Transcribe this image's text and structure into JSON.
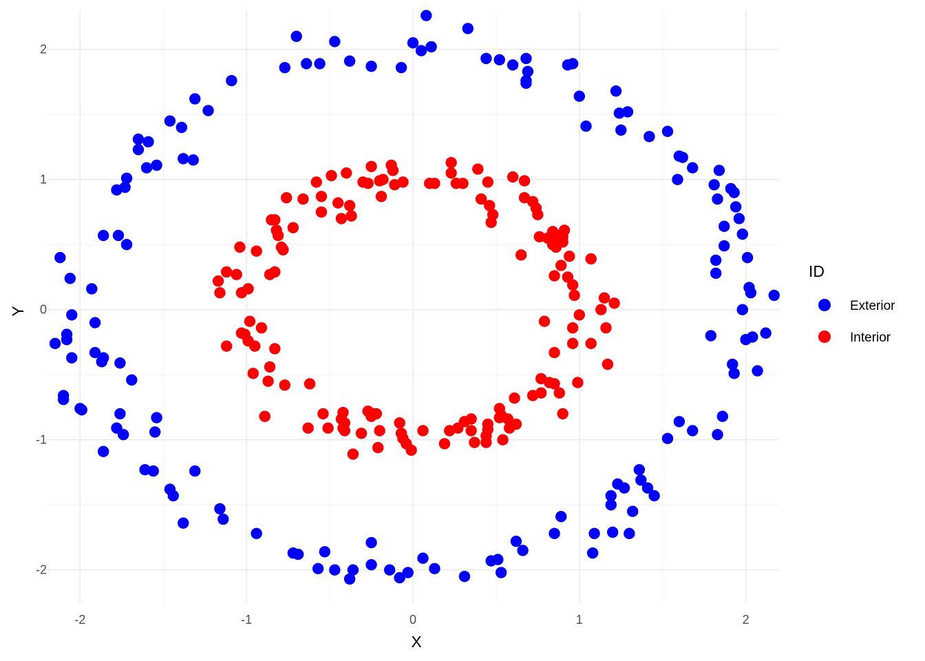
{
  "chart_data": {
    "type": "scatter",
    "title": "",
    "xlabel": "X",
    "ylabel": "Y",
    "xlim": [
      -2.2,
      2.2
    ],
    "ylim": [
      -2.25,
      2.3
    ],
    "x_ticks": [
      -2,
      -1,
      0,
      1,
      2
    ],
    "y_ticks": [
      -2,
      -1,
      0,
      1,
      2
    ],
    "x_tick_labels": [
      "-2",
      "-1",
      "0",
      "1",
      "2"
    ],
    "y_tick_labels": [
      "-2",
      "-1",
      "0",
      "1",
      "2"
    ],
    "grid": true,
    "legend": {
      "title": "ID",
      "position": "right"
    },
    "series": [
      {
        "name": "Exterior",
        "color": "#0000ff",
        "points": [
          [
            0.08,
            2.26
          ],
          [
            0.33,
            2.16
          ],
          [
            -0.7,
            2.1
          ],
          [
            -0.47,
            2.06
          ],
          [
            0.0,
            2.05
          ],
          [
            0.11,
            2.02
          ],
          [
            0.05,
            1.99
          ],
          [
            0.44,
            1.93
          ],
          [
            0.52,
            1.92
          ],
          [
            0.68,
            1.93
          ],
          [
            -0.38,
            1.91
          ],
          [
            -0.56,
            1.89
          ],
          [
            -0.64,
            1.89
          ],
          [
            -0.25,
            1.87
          ],
          [
            -0.77,
            1.86
          ],
          [
            -0.07,
            1.86
          ],
          [
            0.6,
            1.88
          ],
          [
            0.69,
            1.83
          ],
          [
            0.93,
            1.88
          ],
          [
            0.96,
            1.89
          ],
          [
            0.68,
            1.76
          ],
          [
            0.68,
            1.74
          ],
          [
            -1.09,
            1.76
          ],
          [
            -1.23,
            1.53
          ],
          [
            -1.31,
            1.62
          ],
          [
            1.0,
            1.64
          ],
          [
            1.22,
            1.68
          ],
          [
            1.24,
            1.51
          ],
          [
            1.29,
            1.52
          ],
          [
            1.04,
            1.41
          ],
          [
            1.25,
            1.38
          ],
          [
            -1.46,
            1.45
          ],
          [
            -1.39,
            1.4
          ],
          [
            1.42,
            1.33
          ],
          [
            1.53,
            1.37
          ],
          [
            -1.65,
            1.31
          ],
          [
            -1.59,
            1.29
          ],
          [
            -1.65,
            1.23
          ],
          [
            -1.38,
            1.16
          ],
          [
            -1.32,
            1.15
          ],
          [
            -1.54,
            1.11
          ],
          [
            -1.6,
            1.09
          ],
          [
            1.6,
            1.18
          ],
          [
            1.62,
            1.17
          ],
          [
            1.68,
            1.09
          ],
          [
            1.59,
            1.0
          ],
          [
            1.84,
            1.07
          ],
          [
            -1.72,
            1.01
          ],
          [
            -1.73,
            0.94
          ],
          [
            -1.78,
            0.92
          ],
          [
            1.81,
            0.96
          ],
          [
            1.91,
            0.93
          ],
          [
            1.93,
            0.9
          ],
          [
            1.83,
            0.85
          ],
          [
            1.94,
            0.79
          ],
          [
            1.96,
            0.7
          ],
          [
            1.87,
            0.64
          ],
          [
            1.98,
            0.58
          ],
          [
            -1.86,
            0.57
          ],
          [
            -1.77,
            0.57
          ],
          [
            -1.72,
            0.5
          ],
          [
            1.87,
            0.49
          ],
          [
            -2.12,
            0.4
          ],
          [
            2.01,
            0.4
          ],
          [
            1.82,
            0.38
          ],
          [
            1.82,
            0.28
          ],
          [
            -2.06,
            0.24
          ],
          [
            -1.93,
            0.16
          ],
          [
            2.02,
            0.17
          ],
          [
            2.03,
            0.13
          ],
          [
            2.17,
            0.11
          ],
          [
            1.98,
            0.0
          ],
          [
            -2.05,
            -0.04
          ],
          [
            -1.91,
            -0.1
          ],
          [
            -2.08,
            -0.19
          ],
          [
            -2.08,
            -0.23
          ],
          [
            -2.15,
            -0.26
          ],
          [
            1.79,
            -0.2
          ],
          [
            2.12,
            -0.18
          ],
          [
            2.04,
            -0.21
          ],
          [
            2.0,
            -0.23
          ],
          [
            -2.05,
            -0.37
          ],
          [
            -1.91,
            -0.33
          ],
          [
            -1.86,
            -0.37
          ],
          [
            -1.87,
            -0.4
          ],
          [
            -1.76,
            -0.41
          ],
          [
            1.92,
            -0.42
          ],
          [
            1.93,
            -0.49
          ],
          [
            2.07,
            -0.47
          ],
          [
            -1.69,
            -0.54
          ],
          [
            -2.1,
            -0.66
          ],
          [
            -2.1,
            -0.69
          ],
          [
            -2.0,
            -0.76
          ],
          [
            -1.99,
            -0.77
          ],
          [
            -1.76,
            -0.8
          ],
          [
            -1.54,
            -0.83
          ],
          [
            1.86,
            -0.82
          ],
          [
            1.83,
            -0.96
          ],
          [
            1.6,
            -0.86
          ],
          [
            1.68,
            -0.93
          ],
          [
            1.53,
            -0.99
          ],
          [
            -1.78,
            -0.91
          ],
          [
            -1.74,
            -0.96
          ],
          [
            -1.55,
            -0.94
          ],
          [
            -1.86,
            -1.09
          ],
          [
            -1.61,
            -1.23
          ],
          [
            -1.56,
            -1.24
          ],
          [
            -1.31,
            -1.24
          ],
          [
            1.36,
            -1.23
          ],
          [
            1.37,
            -1.31
          ],
          [
            1.41,
            -1.37
          ],
          [
            1.45,
            -1.43
          ],
          [
            1.23,
            -1.34
          ],
          [
            1.27,
            -1.37
          ],
          [
            1.19,
            -1.43
          ],
          [
            1.19,
            -1.5
          ],
          [
            1.32,
            -1.55
          ],
          [
            -1.46,
            -1.38
          ],
          [
            -1.44,
            -1.43
          ],
          [
            -1.16,
            -1.53
          ],
          [
            -1.14,
            -1.61
          ],
          [
            -1.38,
            -1.64
          ],
          [
            0.89,
            -1.59
          ],
          [
            1.09,
            -1.72
          ],
          [
            1.2,
            -1.71
          ],
          [
            1.3,
            -1.72
          ],
          [
            0.85,
            -1.72
          ],
          [
            1.08,
            -1.87
          ],
          [
            -0.94,
            -1.72
          ],
          [
            -0.72,
            -1.87
          ],
          [
            -0.69,
            -1.88
          ],
          [
            -0.53,
            -1.86
          ],
          [
            -0.25,
            -1.79
          ],
          [
            0.62,
            -1.78
          ],
          [
            0.66,
            -1.85
          ],
          [
            -0.57,
            -1.99
          ],
          [
            -0.47,
            -2.0
          ],
          [
            -0.36,
            -2.0
          ],
          [
            -0.25,
            -1.96
          ],
          [
            -0.14,
            -2.0
          ],
          [
            -0.08,
            -2.06
          ],
          [
            -0.03,
            -2.02
          ],
          [
            0.06,
            -1.91
          ],
          [
            0.13,
            -1.99
          ],
          [
            0.31,
            -2.05
          ],
          [
            0.47,
            -1.93
          ],
          [
            0.51,
            -1.92
          ],
          [
            0.53,
            -2.02
          ],
          [
            -0.38,
            -2.07
          ]
        ]
      },
      {
        "name": "Interior",
        "color": "#ff0000",
        "points": [
          [
            0.23,
            1.13
          ],
          [
            -0.25,
            1.1
          ],
          [
            -0.13,
            1.11
          ],
          [
            -0.12,
            1.07
          ],
          [
            0.23,
            1.05
          ],
          [
            0.39,
            1.08
          ],
          [
            0.6,
            1.02
          ],
          [
            0.67,
            0.99
          ],
          [
            -0.4,
            1.05
          ],
          [
            -0.49,
            1.03
          ],
          [
            -0.3,
            0.98
          ],
          [
            -0.27,
            0.97
          ],
          [
            -0.2,
            0.99
          ],
          [
            -0.18,
            1.0
          ],
          [
            -0.11,
            0.96
          ],
          [
            -0.06,
            0.98
          ],
          [
            0.1,
            0.97
          ],
          [
            0.13,
            0.97
          ],
          [
            0.26,
            0.97
          ],
          [
            0.3,
            0.97
          ],
          [
            0.45,
            0.98
          ],
          [
            -0.58,
            0.98
          ],
          [
            -0.19,
            0.87
          ],
          [
            -0.55,
            0.87
          ],
          [
            -0.45,
            0.82
          ],
          [
            -0.38,
            0.8
          ],
          [
            -0.37,
            0.72
          ],
          [
            -0.43,
            0.7
          ],
          [
            -0.55,
            0.75
          ],
          [
            -0.66,
            0.85
          ],
          [
            -0.76,
            0.86
          ],
          [
            0.41,
            0.85
          ],
          [
            0.46,
            0.8
          ],
          [
            0.48,
            0.73
          ],
          [
            0.47,
            0.67
          ],
          [
            0.67,
            0.86
          ],
          [
            0.72,
            0.83
          ],
          [
            0.74,
            0.78
          ],
          [
            0.75,
            0.73
          ],
          [
            -0.85,
            0.69
          ],
          [
            -0.83,
            0.69
          ],
          [
            -0.72,
            0.63
          ],
          [
            -0.82,
            0.61
          ],
          [
            -0.81,
            0.57
          ],
          [
            -0.79,
            0.48
          ],
          [
            -0.78,
            0.46
          ],
          [
            0.76,
            0.56
          ],
          [
            0.81,
            0.55
          ],
          [
            0.84,
            0.6
          ],
          [
            0.87,
            0.57
          ],
          [
            0.91,
            0.61
          ],
          [
            0.9,
            0.56
          ],
          [
            0.84,
            0.5
          ],
          [
            0.86,
            0.48
          ],
          [
            0.9,
            0.52
          ],
          [
            0.65,
            0.42
          ],
          [
            0.94,
            0.41
          ],
          [
            1.07,
            0.39
          ],
          [
            -1.04,
            0.48
          ],
          [
            -0.94,
            0.45
          ],
          [
            -0.86,
            0.27
          ],
          [
            -0.83,
            0.29
          ],
          [
            -1.12,
            0.29
          ],
          [
            -1.06,
            0.27
          ],
          [
            -1.17,
            0.22
          ],
          [
            -1.16,
            0.13
          ],
          [
            -1.03,
            0.13
          ],
          [
            -0.99,
            0.16
          ],
          [
            0.89,
            0.34
          ],
          [
            0.85,
            0.26
          ],
          [
            0.93,
            0.25
          ],
          [
            0.96,
            0.19
          ],
          [
            0.97,
            0.11
          ],
          [
            1.15,
            0.09
          ],
          [
            1.21,
            0.05
          ],
          [
            1.13,
            0.0
          ],
          [
            1.0,
            -0.04
          ],
          [
            0.79,
            -0.09
          ],
          [
            0.96,
            -0.14
          ],
          [
            1.16,
            -0.14
          ],
          [
            -0.98,
            -0.09
          ],
          [
            -0.91,
            -0.14
          ],
          [
            -1.01,
            -0.19
          ],
          [
            -1.03,
            -0.18
          ],
          [
            -0.99,
            -0.24
          ],
          [
            -1.12,
            -0.28
          ],
          [
            -0.95,
            -0.28
          ],
          [
            -0.83,
            -0.3
          ],
          [
            0.96,
            -0.26
          ],
          [
            1.07,
            -0.26
          ],
          [
            0.85,
            -0.33
          ],
          [
            -0.96,
            -0.49
          ],
          [
            -0.86,
            -0.44
          ],
          [
            -0.87,
            -0.55
          ],
          [
            -0.77,
            -0.58
          ],
          [
            0.77,
            -0.53
          ],
          [
            0.85,
            -0.57
          ],
          [
            0.82,
            -0.56
          ],
          [
            0.99,
            -0.56
          ],
          [
            0.77,
            -0.64
          ],
          [
            0.72,
            -0.66
          ],
          [
            0.88,
            -0.64
          ],
          [
            1.17,
            -0.42
          ],
          [
            -0.62,
            -0.57
          ],
          [
            -0.89,
            -0.82
          ],
          [
            0.61,
            -0.68
          ],
          [
            0.52,
            -0.76
          ],
          [
            0.52,
            -0.83
          ],
          [
            0.53,
            -0.81
          ],
          [
            0.57,
            -0.84
          ],
          [
            0.9,
            -0.8
          ],
          [
            0.62,
            -0.88
          ],
          [
            0.58,
            -0.91
          ],
          [
            -0.54,
            -0.8
          ],
          [
            -0.42,
            -0.79
          ],
          [
            -0.43,
            -0.84
          ],
          [
            -0.41,
            -0.87
          ],
          [
            -0.27,
            -0.78
          ],
          [
            -0.24,
            -0.8
          ],
          [
            -0.22,
            -0.8
          ],
          [
            -0.25,
            -0.82
          ],
          [
            -0.08,
            -0.87
          ],
          [
            0.31,
            -0.86
          ],
          [
            0.35,
            -0.84
          ],
          [
            0.45,
            -0.88
          ],
          [
            0.45,
            -0.92
          ],
          [
            -0.63,
            -0.91
          ],
          [
            -0.51,
            -0.91
          ],
          [
            -0.42,
            -0.91
          ],
          [
            -0.41,
            -0.93
          ],
          [
            -0.31,
            -0.95
          ],
          [
            -0.2,
            -0.93
          ],
          [
            -0.07,
            -0.95
          ],
          [
            0.06,
            -0.93
          ],
          [
            0.22,
            -0.93
          ],
          [
            0.27,
            -0.91
          ],
          [
            0.35,
            -0.93
          ],
          [
            0.44,
            -0.97
          ],
          [
            -0.06,
            -0.99
          ],
          [
            -0.04,
            -1.03
          ],
          [
            0.19,
            -1.03
          ],
          [
            0.37,
            -1.02
          ],
          [
            0.44,
            -1.02
          ],
          [
            0.54,
            -1.0
          ],
          [
            -0.21,
            -1.06
          ],
          [
            -0.01,
            -1.08
          ],
          [
            -0.36,
            -1.11
          ]
        ]
      }
    ]
  }
}
